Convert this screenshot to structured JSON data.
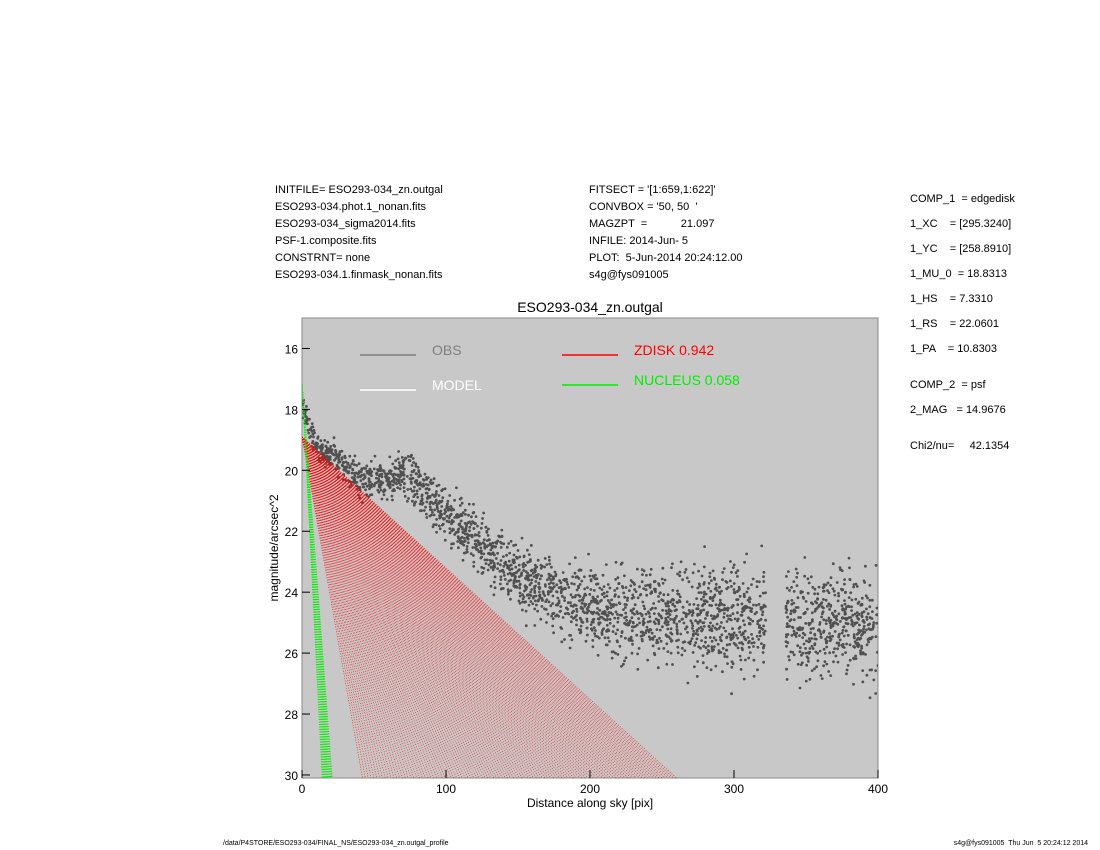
{
  "header_left": [
    "INITFILE= ESO293-034_zn.outgal",
    "ESO293-034.phot.1_nonan.fits",
    "ESO293-034_sigma2014.fits",
    "PSF-1.composite.fits",
    "CONSTRNT= none",
    "ESO293-034.1.finmask_nonan.fits"
  ],
  "header_mid": [
    "FITSECT = '[1:659,1:622]'",
    "CONVBOX = '50, 50  '",
    "MAGZPT  =           21.097",
    "INFILE: 2014-Jun- 5",
    "PLOT:  5-Jun-2014 20:24:12.00",
    "s4g@fys091005"
  ],
  "params": [
    "COMP_1  = edgedisk",
    "1_XC    = [295.3240]",
    "1_YC    = [258.8910]",
    "1_MU_0  = 18.8313",
    "1_HS    = 7.3310",
    "1_RS    = 22.0601",
    "1_PA    = 10.8303",
    "COMP_2  = psf",
    "2_MAG   = 14.9676",
    "Chi2/nu=     42.1354"
  ],
  "footer_left": "/data/P4STORE/ESO293-034/FINAL_NS/ESO293-034_zn.outgal_profile",
  "footer_right": "s4g@fys091005  Thu Jun  5 20:24:12 2014",
  "chart_data": {
    "type": "scatter",
    "title": "ESO293-034_zn.outgal",
    "xlabel": "Distance along sky [pix]",
    "ylabel": "magnitude/arcsec^2",
    "xlim": [
      0,
      400
    ],
    "ylim": [
      30.1,
      15
    ],
    "y_inverted": true,
    "xticks": [
      "0",
      "100",
      "200",
      "300",
      "400"
    ],
    "yticks": [
      "16",
      "18",
      "20",
      "22",
      "24",
      "26",
      "28",
      "30"
    ],
    "background": "#c8c8c8",
    "legend": [
      {
        "label": "OBS",
        "color": "#7f7f7f"
      },
      {
        "label": "MODEL",
        "color": "#ffffff"
      },
      {
        "label": "ZDISK  0.942",
        "color": "#ff0000"
      },
      {
        "label": "NUCLEUS  0.058",
        "color": "#00ee00"
      }
    ],
    "series": [
      {
        "name": "OBS",
        "color": "#505050",
        "x": [
          0,
          10,
          20,
          40,
          60,
          70,
          90,
          120,
          150,
          180,
          200,
          230,
          260,
          290,
          320,
          350,
          380,
          400
        ],
        "y": [
          18.0,
          19.2,
          19.5,
          20.3,
          20.3,
          20.0,
          21.0,
          22.3,
          23.5,
          24.2,
          24.5,
          24.7,
          24.8,
          24.8,
          25.0,
          25.0,
          25.1,
          25.2
        ],
        "gaps": [
          [
            322,
            336
          ]
        ]
      },
      {
        "name": "ZDISK",
        "color": "#ff0000",
        "origin": [
          0,
          18.9
        ],
        "edge_x_at_30": [
          42,
          260
        ]
      },
      {
        "name": "NUCLEUS",
        "color": "#00ee00",
        "origin": [
          0,
          17.1
        ],
        "edge_x_at_30": [
          14,
          21
        ]
      }
    ]
  }
}
